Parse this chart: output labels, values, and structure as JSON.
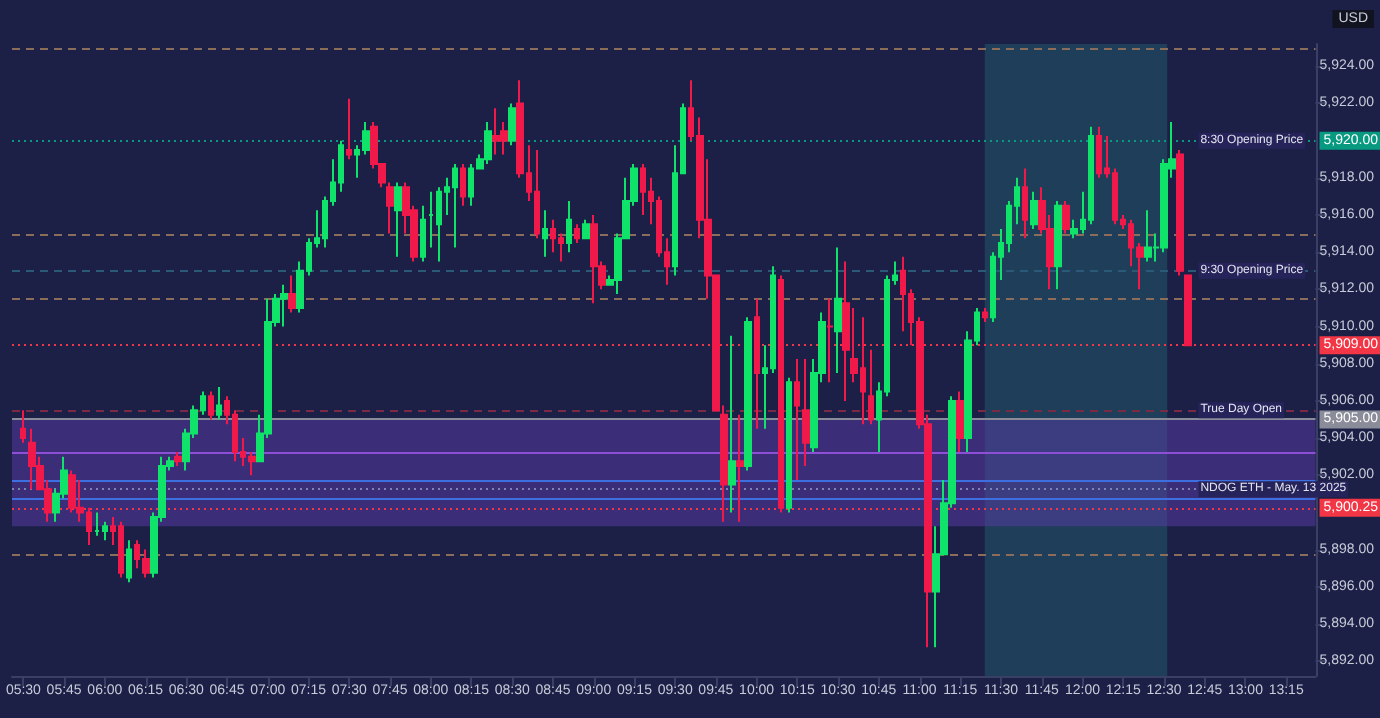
{
  "chart_data": {
    "type": "candlestick",
    "x": [
      5.5,
      5.55,
      5.6,
      5.65,
      5.7,
      5.75,
      5.8,
      5.85,
      5.9,
      5.95,
      6,
      6.05,
      6.1,
      6.15,
      6.2,
      6.25,
      6.3,
      6.35,
      6.4,
      6.45,
      6.5,
      6.55,
      6.6,
      6.65,
      6.7,
      6.75,
      6.8,
      6.85,
      6.9,
      6.95,
      7,
      7.05,
      7.1,
      7.15,
      7.2,
      7.25,
      7.3,
      7.35,
      7.4,
      7.45,
      7.5,
      7.55,
      7.6,
      7.65,
      7.7,
      7.75,
      7.8,
      7.85,
      7.9,
      7.95,
      8,
      8.05,
      8.1,
      8.15,
      8.2,
      8.25,
      8.3,
      8.35,
      8.4,
      8.45,
      8.5,
      8.55,
      8.6,
      8.65,
      8.7,
      8.75,
      8.8,
      8.85,
      8.9,
      8.95,
      9,
      9.05,
      9.1,
      9.15,
      9.2,
      9.25,
      9.3,
      9.35,
      9.4,
      9.45,
      9.5,
      9.55,
      9.6,
      9.65,
      9.7,
      9.75,
      9.8,
      9.85,
      9.9,
      9.95,
      10,
      10.05,
      10.1,
      10.15,
      10.2,
      10.25,
      10.3,
      10.35,
      10.4,
      10.45,
      10.5,
      10.55,
      10.6,
      10.65,
      10.7,
      10.75,
      10.8,
      10.85,
      10.9,
      10.95,
      11,
      11.05,
      11.1,
      11.15,
      11.2,
      11.25,
      11.3,
      11.35,
      11.4,
      11.45,
      11.5,
      11.55,
      11.6,
      11.65,
      11.7,
      11.75,
      11.8,
      11.85,
      11.9,
      11.95,
      12,
      12.05,
      12.1,
      12.15,
      12.2,
      12.25,
      12.3,
      12.35,
      12.4,
      12.45,
      12.5,
      12.55,
      12.6,
      12.65
    ],
    "ohlc": [
      [
        5904.5,
        5905.5,
        5903.75,
        5904
      ],
      [
        5903.75,
        5904.5,
        5901.25,
        5902.5
      ],
      [
        5902.5,
        5903,
        5901.25,
        5901.25
      ],
      [
        5901.25,
        5901.75,
        5899.5,
        5900
      ],
      [
        5900,
        5901.25,
        5899.5,
        5901
      ],
      [
        5901,
        5903,
        5900.75,
        5902.25
      ],
      [
        5902,
        5902.25,
        5900,
        5900.25
      ],
      [
        5900.25,
        5901.75,
        5899.5,
        5900
      ],
      [
        5900,
        5900.25,
        5898.25,
        5899
      ],
      [
        5899,
        5900,
        5898.75,
        5899
      ],
      [
        5899,
        5899.5,
        5898.5,
        5899.25
      ],
      [
        5899.25,
        5899.75,
        5898.25,
        5899
      ],
      [
        5899.25,
        5899.5,
        5896.5,
        5896.75
      ],
      [
        5896.5,
        5898.5,
        5896.25,
        5898
      ],
      [
        5898.25,
        5898.5,
        5897,
        5897.5
      ],
      [
        5897.5,
        5898,
        5896.5,
        5896.75
      ],
      [
        5896.75,
        5900,
        5896.5,
        5899.75
      ],
      [
        5899.75,
        5903,
        5899.5,
        5902.5
      ],
      [
        5902.5,
        5903,
        5902.25,
        5902.75
      ],
      [
        5903,
        5903.25,
        5902.5,
        5902.75
      ],
      [
        5902.75,
        5904.5,
        5902.25,
        5904.25
      ],
      [
        5904.25,
        5905.75,
        5904,
        5905.5
      ],
      [
        5905.5,
        5906.5,
        5905.25,
        5906.25
      ],
      [
        5906.25,
        5906.5,
        5905,
        5905.25
      ],
      [
        5905.25,
        5906.75,
        5905,
        5905.75
      ],
      [
        5906,
        5906.25,
        5904.75,
        5905.25
      ],
      [
        5905.25,
        5905.5,
        5902.75,
        5903.25
      ],
      [
        5903.25,
        5904,
        5902.5,
        5903
      ],
      [
        5903,
        5903.25,
        5902,
        5902.75
      ],
      [
        5902.75,
        5905.25,
        5902.75,
        5904.25
      ],
      [
        5904.25,
        5911.5,
        5904,
        5910.25
      ],
      [
        5910.25,
        5911.75,
        5910,
        5911.5
      ],
      [
        5911.5,
        5912.25,
        5910,
        5911.75
      ],
      [
        5911.75,
        5912.75,
        5910.75,
        5911
      ],
      [
        5911,
        5913.5,
        5910.75,
        5913
      ],
      [
        5913,
        5914.75,
        5912.75,
        5914.5
      ],
      [
        5914.5,
        5916.25,
        5914.25,
        5914.75
      ],
      [
        5914.75,
        5917,
        5914.25,
        5916.75
      ],
      [
        5916.75,
        5919,
        5916.5,
        5917.75
      ],
      [
        5917.75,
        5920,
        5917.25,
        5919.75
      ],
      [
        5919.5,
        5922.25,
        5919,
        5919.25
      ],
      [
        5919.25,
        5919.75,
        5918,
        5919.5
      ],
      [
        5919.5,
        5921,
        5919.25,
        5920.5
      ],
      [
        5920.75,
        5921,
        5918.5,
        5918.75
      ],
      [
        5918.75,
        5918.75,
        5917.5,
        5917.75
      ],
      [
        5917.5,
        5917.75,
        5915,
        5916.5
      ],
      [
        5916.25,
        5917.75,
        5913.75,
        5917.5
      ],
      [
        5917.5,
        5917.75,
        5915,
        5916
      ],
      [
        5916.25,
        5916.5,
        5913.5,
        5913.75
      ],
      [
        5913.75,
        5916.5,
        5913.5,
        5915.75
      ],
      [
        5916,
        5917.25,
        5914.25,
        5916
      ],
      [
        5915.5,
        5917.5,
        5913.5,
        5917.25
      ],
      [
        5917.25,
        5918,
        5916,
        5917.5
      ],
      [
        5917.5,
        5918.75,
        5914.25,
        5918.5
      ],
      [
        5918.5,
        5918.75,
        5916.5,
        5917
      ],
      [
        5917,
        5918.75,
        5916.5,
        5918.5
      ],
      [
        5918.5,
        5919.25,
        5918.5,
        5919
      ],
      [
        5919,
        5921,
        5918.75,
        5920.5
      ],
      [
        5920.25,
        5921.75,
        5919.25,
        5920
      ],
      [
        5920.5,
        5921,
        5919.25,
        5920
      ],
      [
        5920,
        5922,
        5919.75,
        5921.75
      ],
      [
        5922,
        5923.25,
        5918,
        5918.25
      ],
      [
        5918.25,
        5919.75,
        5916.75,
        5917.25
      ],
      [
        5917.25,
        5919.5,
        5914.75,
        5915
      ],
      [
        5914.75,
        5916.25,
        5913.75,
        5915.25
      ],
      [
        5915.25,
        5915.75,
        5914,
        5914.75
      ],
      [
        5914.75,
        5915,
        5913.5,
        5914.5
      ],
      [
        5914.5,
        5916.75,
        5914,
        5915.75
      ],
      [
        5915.25,
        5915.5,
        5914.5,
        5914.75
      ],
      [
        5914.75,
        5915.75,
        5914.75,
        5915.5
      ],
      [
        5915.5,
        5916,
        5911.25,
        5913.25
      ],
      [
        5913.25,
        5913.5,
        5912,
        5912.25
      ],
      [
        5912.25,
        5912.75,
        5912.25,
        5912.5
      ],
      [
        5912.5,
        5915,
        5911.75,
        5914.75
      ],
      [
        5914.75,
        5918,
        5914.75,
        5916.75
      ],
      [
        5916.75,
        5918.75,
        5916.5,
        5918.5
      ],
      [
        5918.5,
        5918.75,
        5916,
        5917.25
      ],
      [
        5917.25,
        5918,
        5915.5,
        5916.75
      ],
      [
        5916.75,
        5917,
        5913.75,
        5914
      ],
      [
        5914,
        5914.75,
        5912.25,
        5913.25
      ],
      [
        5913.25,
        5919.75,
        5912.75,
        5918.25
      ],
      [
        5918.25,
        5922,
        5918.25,
        5921.75
      ],
      [
        5921.75,
        5923.25,
        5920,
        5920.25
      ],
      [
        5920.25,
        5921.25,
        5914.75,
        5915.75
      ],
      [
        5915.75,
        5919,
        5911.5,
        5912.75
      ],
      [
        5912.75,
        5912.75,
        5905.5,
        5905.5
      ],
      [
        5905.25,
        5905.75,
        5899.5,
        5901.5
      ],
      [
        5901.5,
        5909.5,
        5900,
        5902.75
      ],
      [
        5902.75,
        5905.25,
        5899.5,
        5902.5
      ],
      [
        5902.5,
        5910.5,
        5902.25,
        5910.25
      ],
      [
        5910.5,
        5911.5,
        5904.5,
        5907.5
      ],
      [
        5907.5,
        5909,
        5904.5,
        5907.75
      ],
      [
        5907.75,
        5913.25,
        5907.5,
        5912.75
      ],
      [
        5912.5,
        5912.75,
        5900,
        5900.25
      ],
      [
        5900.25,
        5907.25,
        5900,
        5907
      ],
      [
        5907,
        5908.25,
        5901.75,
        5905.75
      ],
      [
        5905.5,
        5908.25,
        5902.5,
        5903.75
      ],
      [
        5903.5,
        5908.25,
        5903.25,
        5907.5
      ],
      [
        5907.5,
        5910.75,
        5907,
        5910.25
      ],
      [
        5910,
        5911.5,
        5907,
        5910
      ],
      [
        5909.75,
        5914.25,
        5907.5,
        5911.5
      ],
      [
        5911.25,
        5913.5,
        5906,
        5908.75
      ],
      [
        5908.25,
        5911,
        5907,
        5907.5
      ],
      [
        5907.75,
        5910.5,
        5904.75,
        5906.5
      ],
      [
        5906.25,
        5908.75,
        5904.75,
        5905
      ],
      [
        5905,
        5907,
        5903.25,
        5906.5
      ],
      [
        5906.5,
        5912.75,
        5906.25,
        5912.5
      ],
      [
        5912.5,
        5913.5,
        5912.25,
        5912.75
      ],
      [
        5913,
        5913.75,
        5909.75,
        5911.75
      ],
      [
        5911.75,
        5912,
        5909,
        5910.25
      ],
      [
        5910.25,
        5910.5,
        5904.5,
        5904.75
      ],
      [
        5904.75,
        5905.25,
        5892.75,
        5895.75
      ],
      [
        5895.75,
        5899.25,
        5892.75,
        5897.75
      ],
      [
        5897.75,
        5901.75,
        5897.75,
        5900.5
      ],
      [
        5900.5,
        5906.25,
        5900.25,
        5906
      ],
      [
        5906,
        5906.5,
        5903.25,
        5904
      ],
      [
        5904,
        5909.75,
        5903.25,
        5909.25
      ],
      [
        5909.25,
        5911,
        5909,
        5910.75
      ],
      [
        5910.75,
        5911,
        5910.25,
        5910.5
      ],
      [
        5910.5,
        5914,
        5910.25,
        5913.75
      ],
      [
        5913.75,
        5915.25,
        5912.5,
        5914.5
      ],
      [
        5914.5,
        5916.75,
        5914,
        5916.5
      ],
      [
        5916.5,
        5918,
        5915.5,
        5917.5
      ],
      [
        5917.5,
        5918.5,
        5914.75,
        5915.75
      ],
      [
        5915.5,
        5917.25,
        5915.25,
        5916.75
      ],
      [
        5916.75,
        5917.5,
        5915,
        5915.25
      ],
      [
        5915.25,
        5916,
        5912,
        5913.25
      ],
      [
        5913.25,
        5916.75,
        5912,
        5916.5
      ],
      [
        5916.5,
        5916.75,
        5915,
        5915.25
      ],
      [
        5915,
        5915.75,
        5914.75,
        5915.25
      ],
      [
        5915.25,
        5917.25,
        5915,
        5915.75
      ],
      [
        5915.75,
        5920.75,
        5915.5,
        5920.25
      ],
      [
        5920.25,
        5920.75,
        5918,
        5918.25
      ],
      [
        5918.5,
        5920.25,
        5918,
        5918.25
      ],
      [
        5918.25,
        5918.5,
        5915.5,
        5915.75
      ],
      [
        5915.75,
        5916,
        5915.25,
        5915.5
      ],
      [
        5915.5,
        5915.75,
        5913.25,
        5914.25
      ],
      [
        5914.25,
        5914.5,
        5912,
        5913.75
      ],
      [
        5913.75,
        5916.25,
        5913.5,
        5914.25
      ],
      [
        5914.25,
        5915,
        5913.5,
        5914.25
      ],
      [
        5914.25,
        5919,
        5914,
        5918.75
      ],
      [
        5918.5,
        5921,
        5918,
        5919
      ],
      [
        5919.25,
        5919.5,
        5912.75,
        5913
      ],
      [
        5912.75,
        5912.75,
        5909,
        5909
      ]
    ],
    "xlim": [
      5.43,
      13.43
    ],
    "xticks": [
      {
        "value": 5.5,
        "label": "05:30"
      },
      {
        "value": 5.75,
        "label": "05:45"
      },
      {
        "value": 6,
        "label": "06:00"
      },
      {
        "value": 6.25,
        "label": "06:15"
      },
      {
        "value": 6.5,
        "label": "06:30"
      },
      {
        "value": 6.75,
        "label": "06:45"
      },
      {
        "value": 7,
        "label": "07:00"
      },
      {
        "value": 7.25,
        "label": "07:15"
      },
      {
        "value": 7.5,
        "label": "07:30"
      },
      {
        "value": 7.75,
        "label": "07:45"
      },
      {
        "value": 8,
        "label": "08:00"
      },
      {
        "value": 8.25,
        "label": "08:15"
      },
      {
        "value": 8.5,
        "label": "08:30"
      },
      {
        "value": 8.75,
        "label": "08:45"
      },
      {
        "value": 9,
        "label": "09:00"
      },
      {
        "value": 9.25,
        "label": "09:15"
      },
      {
        "value": 9.5,
        "label": "09:30"
      },
      {
        "value": 9.75,
        "label": "09:45"
      },
      {
        "value": 10,
        "label": "10:00"
      },
      {
        "value": 10.25,
        "label": "10:15"
      },
      {
        "value": 10.5,
        "label": "10:30"
      },
      {
        "value": 10.75,
        "label": "10:45"
      },
      {
        "value": 11,
        "label": "11:00"
      },
      {
        "value": 11.25,
        "label": "11:15"
      },
      {
        "value": 11.5,
        "label": "11:30"
      },
      {
        "value": 11.75,
        "label": "11:45"
      },
      {
        "value": 12,
        "label": "12:00"
      },
      {
        "value": 12.25,
        "label": "12:15"
      },
      {
        "value": 12.5,
        "label": "12:30"
      },
      {
        "value": 12.75,
        "label": "12:45"
      },
      {
        "value": 13,
        "label": "13:00"
      },
      {
        "value": 13.25,
        "label": "13:15"
      }
    ],
    "ylim": [
      5891.2,
      5925.2
    ],
    "yticks": [
      {
        "value": 5892,
        "label": "5,892.00"
      },
      {
        "value": 5894,
        "label": "5,894.00"
      },
      {
        "value": 5896,
        "label": "5,896.00"
      },
      {
        "value": 5898,
        "label": "5,898.00"
      },
      {
        "value": 5902,
        "label": "5,902.00"
      },
      {
        "value": 5904,
        "label": "5,904.00"
      },
      {
        "value": 5906,
        "label": "5,906.00"
      },
      {
        "value": 5908,
        "label": "5,908.00"
      },
      {
        "value": 5910,
        "label": "5,910.00"
      },
      {
        "value": 5912,
        "label": "5,912.00"
      },
      {
        "value": 5914,
        "label": "5,914.00"
      },
      {
        "value": 5916,
        "label": "5,916.00"
      },
      {
        "value": 5918,
        "label": "5,918.00"
      },
      {
        "value": 5922,
        "label": "5,922.00"
      },
      {
        "value": 5924,
        "label": "5,924.00"
      }
    ],
    "ref_lines": [
      {
        "axis": "y",
        "value": 5925,
        "label": null,
        "color": "#8a6d5a",
        "line_style": "dashed"
      },
      {
        "axis": "y",
        "value": 5920,
        "label": "5,920.00",
        "color": "#089981",
        "line_style": "dotted"
      },
      {
        "axis": "y",
        "value": 5915,
        "label": null,
        "color": "#8a6d5a",
        "line_style": "dashed"
      },
      {
        "axis": "y",
        "value": 5913,
        "label": null,
        "color": "#2a5a78",
        "line_style": "dashed"
      },
      {
        "axis": "y",
        "value": 5911.5,
        "label": null,
        "color": "#8a6d5a",
        "line_style": "dashed"
      },
      {
        "axis": "y",
        "value": 5909,
        "label": "5,909.00",
        "color": "#f23645",
        "line_style": "dotted"
      },
      {
        "axis": "y",
        "value": 5905.5,
        "label": null,
        "color": "#7a2a45",
        "line_style": "dashed"
      },
      {
        "axis": "y",
        "value": 5905,
        "label": "5,905.00",
        "color": "#8a8d99",
        "line_style": "solid"
      },
      {
        "axis": "y",
        "value": 5903.25,
        "label": null,
        "color": "#8c4fd6",
        "line_style": "solid"
      },
      {
        "axis": "y",
        "value": 5901.75,
        "label": null,
        "color": "#3d6fe0",
        "line_style": "solid"
      },
      {
        "axis": "y",
        "value": 5901.25,
        "label": null,
        "color": "#7a86b0",
        "line_style": "dotted"
      },
      {
        "axis": "y",
        "value": 5900.75,
        "label": null,
        "color": "#3d6fe0",
        "line_style": "solid"
      },
      {
        "axis": "y",
        "value": 5900.25,
        "label": "5,900.25",
        "color": "#f23645",
        "line_style": "dotted"
      },
      {
        "axis": "y",
        "value": 5897.75,
        "label": null,
        "color": "#8a6d5a",
        "line_style": "dashed"
      }
    ],
    "bands": [
      {
        "axis": "x",
        "from": 11.4,
        "to": 12.52,
        "color": "#1f5c6b"
      },
      {
        "axis": "y",
        "from": 5899.25,
        "to": 5905,
        "color": "#5a3aa8"
      }
    ],
    "annotations": [
      "USD",
      {
        "text": "8:30 Opening Price",
        "y": 5920
      },
      {
        "text": "9:30 Opening Price",
        "y": 5913
      },
      {
        "text": "True Day Open",
        "y": 5905.5
      },
      {
        "text": "NDOG ETH - May. 13 2025",
        "y": 5901.25
      }
    ]
  }
}
